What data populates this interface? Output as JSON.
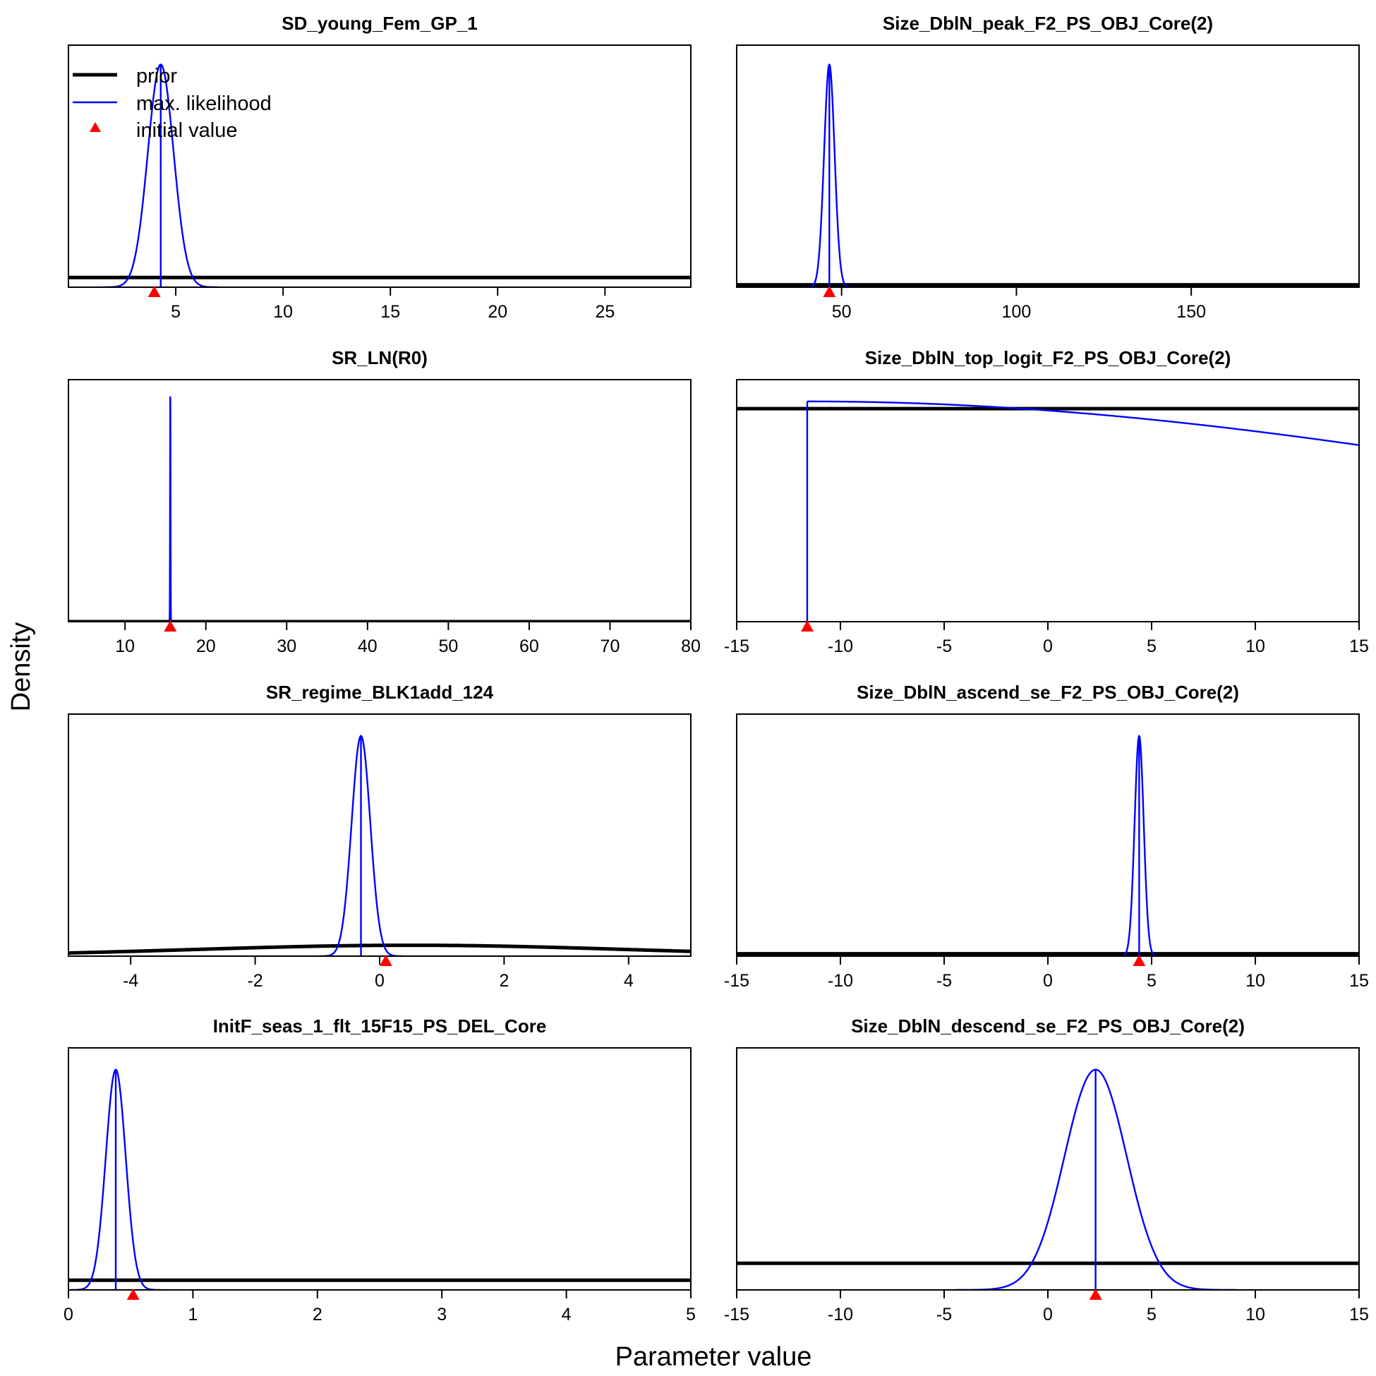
{
  "figure": {
    "xlabel": "Parameter value",
    "ylabel": "Density",
    "legend": {
      "placement": "top-left of first panel",
      "items": [
        {
          "label": "prior",
          "color": "#000000",
          "kind": "thick-line"
        },
        {
          "label": "max. likelihood",
          "color": "#0000FF",
          "kind": "line"
        },
        {
          "label": "initial value",
          "color": "#FF0000",
          "kind": "triangle"
        }
      ]
    },
    "colors": {
      "prior": "#000000",
      "mle": "#0000FF",
      "initial": "#FF0000"
    }
  },
  "chart_data": [
    {
      "type": "line",
      "title": "SD_young_Fem_GP_1",
      "xlim": [
        0,
        29
      ],
      "ylim": [
        0,
        1
      ],
      "xticks": [
        5,
        10,
        15,
        20,
        25
      ],
      "prior": {
        "shape": "flat",
        "level": 0.04
      },
      "mle": {
        "mean": 4.3,
        "sd": 0.6,
        "peak": 0.92
      },
      "initial_value": 4.0
    },
    {
      "type": "line",
      "title": "Size_DblN_peak_F2_PS_OBJ_Core(2)",
      "xlim": [
        20,
        198
      ],
      "ylim": [
        0,
        1
      ],
      "xticks": [
        50,
        100,
        150
      ],
      "prior": {
        "shape": "flat",
        "level": 0.01
      },
      "mle": {
        "mean": 46.5,
        "sd": 1.5,
        "peak": 0.92
      },
      "initial_value": 46.5
    },
    {
      "type": "line",
      "title": "SR_LN(R0)",
      "xlim": [
        3,
        80
      ],
      "ylim": [
        0,
        1
      ],
      "xticks": [
        10,
        20,
        30,
        40,
        50,
        60,
        70,
        80
      ],
      "prior": {
        "shape": "flat",
        "level": 0.0
      },
      "mle": {
        "mean": 15.6,
        "sd": 0.03,
        "peak": 0.93
      },
      "initial_value": 15.6
    },
    {
      "type": "line",
      "title": "Size_DblN_top_logit_F2_PS_OBJ_Core(2)",
      "xlim": [
        -15,
        15
      ],
      "ylim": [
        0,
        1
      ],
      "xticks": [
        -15,
        -10,
        -5,
        0,
        5,
        10,
        15
      ],
      "prior": {
        "shape": "flat",
        "level": 0.88
      },
      "mle": {
        "mean": -11.6,
        "sd": 40,
        "peak": 0.91,
        "truncate_left": true
      },
      "initial_value": -11.6
    },
    {
      "type": "line",
      "title": "SR_regime_BLK1add_124",
      "xlim": [
        -5,
        5
      ],
      "ylim": [
        0,
        1
      ],
      "xticks": [
        -4,
        -2,
        0,
        2,
        4
      ],
      "prior": {
        "shape": "normal",
        "mean": 0.5,
        "sd": 3.5,
        "peak": 0.045
      },
      "mle": {
        "mean": -0.3,
        "sd": 0.15,
        "peak": 0.91
      },
      "initial_value": 0.1
    },
    {
      "type": "line",
      "title": "Size_DblN_ascend_se_F2_PS_OBJ_Core(2)",
      "xlim": [
        -15,
        15
      ],
      "ylim": [
        0,
        1
      ],
      "xticks": [
        -15,
        -10,
        -5,
        0,
        5,
        10,
        15
      ],
      "prior": {
        "shape": "flat",
        "level": 0.01
      },
      "mle": {
        "mean": 4.4,
        "sd": 0.22,
        "peak": 0.91
      },
      "initial_value": 4.4
    },
    {
      "type": "line",
      "title": "InitF_seas_1_flt_15F15_PS_DEL_Core",
      "xlim": [
        0,
        5
      ],
      "ylim": [
        0,
        1
      ],
      "xticks": [
        0,
        1,
        2,
        3,
        4,
        5
      ],
      "prior": {
        "shape": "flat",
        "level": 0.04
      },
      "mle": {
        "mean": 0.38,
        "sd": 0.08,
        "peak": 0.91
      },
      "initial_value": 0.52
    },
    {
      "type": "line",
      "title": "Size_DblN_descend_se_F2_PS_OBJ_Core(2)",
      "xlim": [
        -15,
        15
      ],
      "ylim": [
        0,
        1
      ],
      "xticks": [
        -15,
        -10,
        -5,
        0,
        5,
        10,
        15
      ],
      "prior": {
        "shape": "flat",
        "level": 0.11
      },
      "mle": {
        "mean": 2.3,
        "sd": 1.5,
        "peak": 0.91
      },
      "initial_value": 2.3
    }
  ]
}
